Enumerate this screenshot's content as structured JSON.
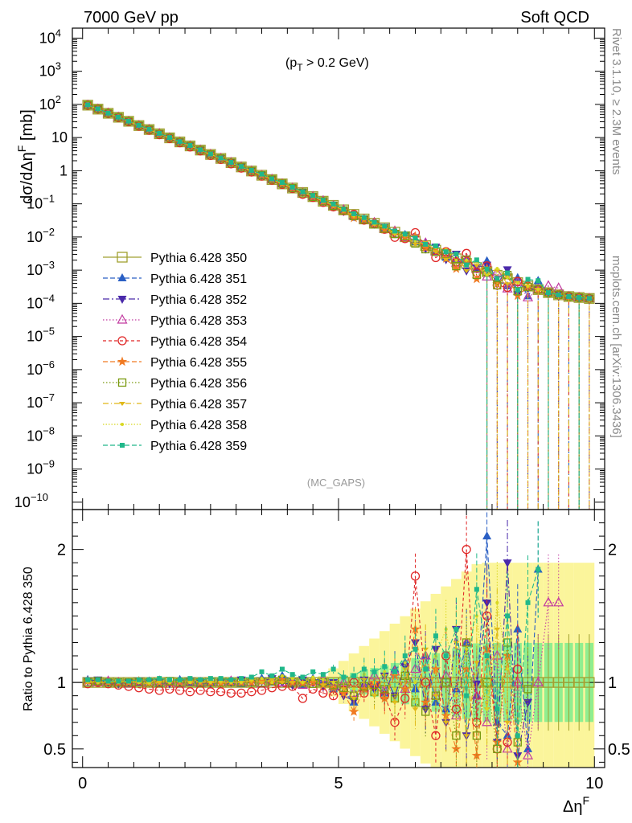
{
  "header": {
    "left": "7000 GeV pp",
    "right": "Soft QCD"
  },
  "side": {
    "top": "Rivet 3.1.10, ≥ 2.3M events",
    "bottom": "mcplots.cern.ch [arXiv:1306.3436]"
  },
  "top_panel": {
    "cut_label": "(p",
    "cut_sub": "T",
    "cut_rest": " > 0.2 GeV)",
    "watermark": "(MC_GAPS)",
    "ylabel": "dσ/dΔη",
    "ylabel_sup": "F",
    "ylabel_unit": " [mb]"
  },
  "bottom_panel": {
    "ylabel": "Ratio to Pythia 6.428 350"
  },
  "xaxis": {
    "label": "Δη",
    "label_sup": "F"
  },
  "chart_data": {
    "type": "line",
    "xlabel": "Δη^F",
    "ylabel": "dσ/dΔη^F [mb]",
    "ylog": true,
    "xlim": [
      -0.2,
      10.2
    ],
    "ylim": [
      6e-11,
      20000
    ],
    "yticks": [
      {
        "v": 10000,
        "m": "10",
        "e": "4"
      },
      {
        "v": 1000,
        "m": "10",
        "e": "3"
      },
      {
        "v": 100,
        "m": "10",
        "e": "2"
      },
      {
        "v": 10,
        "m": "10",
        "e": ""
      },
      {
        "v": 1,
        "m": "1",
        "e": ""
      },
      {
        "v": 0.1,
        "m": "10",
        "e": "−1"
      },
      {
        "v": 0.01,
        "m": "10",
        "e": "−2"
      },
      {
        "v": 0.001,
        "m": "10",
        "e": "−3"
      },
      {
        "v": 0.0001,
        "m": "10",
        "e": "−4"
      },
      {
        "v": 1e-05,
        "m": "10",
        "e": "−5"
      },
      {
        "v": 1e-06,
        "m": "10",
        "e": "−6"
      },
      {
        "v": 1e-07,
        "m": "10",
        "e": "−7"
      },
      {
        "v": 1e-08,
        "m": "10",
        "e": "−8"
      },
      {
        "v": 1e-09,
        "m": "10",
        "e": "−9"
      },
      {
        "v": 1e-10,
        "m": "10",
        "e": "−10"
      }
    ],
    "xticks": [
      0,
      5,
      10
    ],
    "ratio_ylim": [
      0.36,
      2.3
    ],
    "ratio_yticks": [
      0.5,
      1,
      2
    ],
    "x": [
      0.1,
      0.3,
      0.5,
      0.7,
      0.9,
      1.1,
      1.3,
      1.5,
      1.7,
      1.9,
      2.1,
      2.3,
      2.5,
      2.7,
      2.9,
      3.1,
      3.3,
      3.5,
      3.7,
      3.9,
      4.1,
      4.3,
      4.5,
      4.7,
      4.9,
      5.1,
      5.3,
      5.5,
      5.7,
      5.9,
      6.1,
      6.3,
      6.5,
      6.7,
      6.9,
      7.1,
      7.3,
      7.5,
      7.7,
      7.9,
      8.1,
      8.3,
      8.5,
      8.7,
      8.9,
      9.1,
      9.3,
      9.5,
      9.7,
      9.9
    ],
    "reference_values": [
      95,
      72,
      54,
      41,
      31,
      23,
      17.5,
      13,
      9.8,
      7.4,
      5.6,
      4.2,
      3.1,
      2.35,
      1.75,
      1.3,
      0.98,
      0.73,
      0.54,
      0.4,
      0.3,
      0.22,
      0.165,
      0.12,
      0.09,
      0.066,
      0.048,
      0.035,
      0.026,
      0.019,
      0.014,
      0.0102,
      0.0075,
      0.0055,
      0.004,
      0.003,
      0.0022,
      0.0016,
      0.0012,
      0.0009,
      0.0007,
      0.00055,
      0.00042,
      0.00033,
      0.00026,
      0.00021,
      0.00018,
      0.00016,
      0.00015,
      0.00014
    ],
    "series": [
      {
        "name": "Pythia 6.428 350",
        "color": "#a0a030",
        "marker": "square-open",
        "dash": "",
        "ratio": [
          1.0
        ]
      },
      {
        "name": "Pythia 6.428 351",
        "color": "#2a5fc4",
        "marker": "triangle-up",
        "dash": "6,3",
        "ratio": [
          1.02,
          1.01,
          1.0,
          1.0,
          0.99,
          1.0,
          1.01,
          0.99,
          1.0,
          1.02,
          1.0,
          0.99,
          1.0,
          1.01,
          1.0,
          0.99,
          1.02,
          1.03,
          1.0,
          1.05,
          1.02,
          0.98,
          1.03,
          1.01,
          0.95,
          0.93,
          0.85,
          0.98,
          1.0,
          0.92,
          1.1,
          1.15,
          0.95,
          1.2,
          0.85,
          0.8,
          0.95,
          1.3,
          0.9,
          2.1,
          0.7,
          0.6,
          1.4,
          0.5,
          1.85
        ]
      },
      {
        "name": "Pythia 6.428 352",
        "color": "#4a2aaa",
        "marker": "triangle-down",
        "dash": "8,3,2,3",
        "ratio": [
          1.01,
          1.02,
          1.0,
          0.99,
          1.0,
          1.01,
          1.0,
          1.0,
          0.99,
          1.0,
          1.01,
          1.0,
          0.99,
          1.0,
          1.0,
          1.02,
          1.0,
          1.01,
          1.03,
          1.0,
          0.98,
          1.02,
          1.0,
          0.97,
          1.0,
          0.9,
          0.86,
          1.02,
          0.95,
          1.05,
          0.9,
          1.12,
          1.3,
          0.8,
          1.25,
          0.7,
          1.4,
          0.6,
          0.99,
          1.6,
          0.55,
          1.9,
          0.45,
          0.85
        ]
      },
      {
        "name": "Pythia 6.428 353",
        "color": "#c23aa0",
        "marker": "triangle-open",
        "dash": "1.5,2.5",
        "ratio": [
          1.0,
          1.0,
          1.01,
          1.0,
          0.99,
          1.0,
          1.0,
          1.01,
          1.0,
          0.99,
          1.0,
          1.0,
          1.0,
          1.0,
          1.01,
          1.0,
          1.0,
          0.99,
          1.02,
          1.0,
          1.0,
          0.98,
          1.01,
          1.03,
          0.97,
          1.0,
          0.92,
          0.96,
          1.05,
          0.94,
          1.08,
          0.95,
          1.1,
          1.2,
          0.9,
          1.05,
          0.75,
          1.3,
          0.9,
          0.7,
          1.2,
          0.5,
          1.0,
          0.45,
          1.0,
          1.6,
          1.6
        ]
      },
      {
        "name": "Pythia 6.428 354",
        "color": "#e02828",
        "marker": "circle-open",
        "dash": "4,3",
        "ratio": [
          0.99,
          1.0,
          0.99,
          0.98,
          0.97,
          0.96,
          0.95,
          0.94,
          0.95,
          0.94,
          0.93,
          0.94,
          0.93,
          0.93,
          0.92,
          0.92,
          0.93,
          0.94,
          0.96,
          0.97,
          0.97,
          0.88,
          0.95,
          0.92,
          0.9,
          0.94,
          1.0,
          0.92,
          0.98,
          0.9,
          0.7,
          0.88,
          1.8,
          1.0,
          0.6,
          1.2,
          0.8,
          2.0,
          0.7,
          1.5,
          0.5,
          0.55,
          1.1
        ]
      },
      {
        "name": "Pythia 6.428 355",
        "color": "#f07a22",
        "marker": "star",
        "dash": "6,3",
        "ratio": [
          1.01,
          1.0,
          1.0,
          1.0,
          1.0,
          1.01,
          1.0,
          1.0,
          1.0,
          1.0,
          1.01,
          1.0,
          1.0,
          0.99,
          1.0,
          1.0,
          1.0,
          1.01,
          1.0,
          1.02,
          1.0,
          0.99,
          1.0,
          0.98,
          0.96,
          0.92,
          0.78,
          0.95,
          1.0,
          0.88,
          1.05,
          0.95,
          1.4,
          0.85,
          1.1,
          0.75,
          0.5,
          1.1,
          0.45,
          1.25,
          0.55,
          1.2,
          0.4
        ]
      },
      {
        "name": "Pythia 6.428 356",
        "color": "#7a9a10",
        "marker": "square-open-small",
        "dash": "1.5,2.5",
        "ratio": [
          1.0,
          1.01,
          1.0,
          1.0,
          1.0,
          1.0,
          1.0,
          1.0,
          1.01,
          1.0,
          1.0,
          1.0,
          1.0,
          1.0,
          1.0,
          1.0,
          1.0,
          1.0,
          1.01,
          1.02,
          1.0,
          1.0,
          0.99,
          1.0,
          0.98,
          0.96,
          0.9,
          0.97,
          0.93,
          0.95,
          0.88,
          1.05,
          0.85,
          0.78,
          0.9,
          1.0,
          0.6,
          1.3,
          0.6,
          1.0,
          0.5,
          1.3,
          0.55,
          0.95
        ]
      },
      {
        "name": "Pythia 6.428 357",
        "color": "#e0b818",
        "marker": "tri-small",
        "dash": "7,3,1,3",
        "ratio": [
          1.0,
          1.0,
          1.0,
          1.01,
          1.0,
          1.0,
          0.99,
          1.0,
          1.0,
          1.01,
          1.0,
          1.0,
          1.0,
          1.0,
          1.0,
          1.0,
          1.01,
          1.0,
          1.02,
          1.0,
          1.0,
          1.0,
          1.02,
          0.98,
          1.0,
          0.95,
          0.88,
          1.02,
          0.9,
          1.05,
          0.85,
          1.1,
          0.8,
          1.25,
          0.9,
          0.7,
          1.3,
          0.6,
          1.15,
          0.8,
          1.4,
          0.7
        ]
      },
      {
        "name": "Pythia 6.428 358",
        "color": "#d8d820",
        "marker": "dot-small",
        "dash": "1.5,2",
        "ratio": [
          1.01,
          1.0,
          1.01,
          1.0,
          1.01,
          1.0,
          1.0,
          1.02,
          1.0,
          1.01,
          1.0,
          1.01,
          1.0,
          1.01,
          1.0,
          1.0,
          1.02,
          1.03,
          1.0,
          1.05,
          1.03,
          1.0,
          1.04,
          1.02,
          1.0,
          1.04,
          0.95,
          1.06,
          1.0,
          1.08,
          0.95,
          1.15,
          1.0,
          1.1,
          1.2,
          1.4,
          0.9,
          1.25,
          1.5,
          0.8,
          1.6,
          1.1
        ]
      },
      {
        "name": "Pythia 6.428 359",
        "color": "#20b88a",
        "marker": "square-filled",
        "dash": "6,3",
        "ratio": [
          1.02,
          1.02,
          1.01,
          1.01,
          1.01,
          1.02,
          1.02,
          1.03,
          1.02,
          1.02,
          1.03,
          1.02,
          1.03,
          1.03,
          1.02,
          1.03,
          1.04,
          1.08,
          1.05,
          1.1,
          1.06,
          1.04,
          1.08,
          1.06,
          1.1,
          1.04,
          1.05,
          1.1,
          1.08,
          1.12,
          1.08,
          1.2,
          1.25,
          1.1,
          1.35,
          1.2,
          1.4,
          0.9,
          1.7,
          1.2,
          0.8,
          1.5,
          0.6,
          1.6,
          1.85
        ]
      }
    ]
  }
}
